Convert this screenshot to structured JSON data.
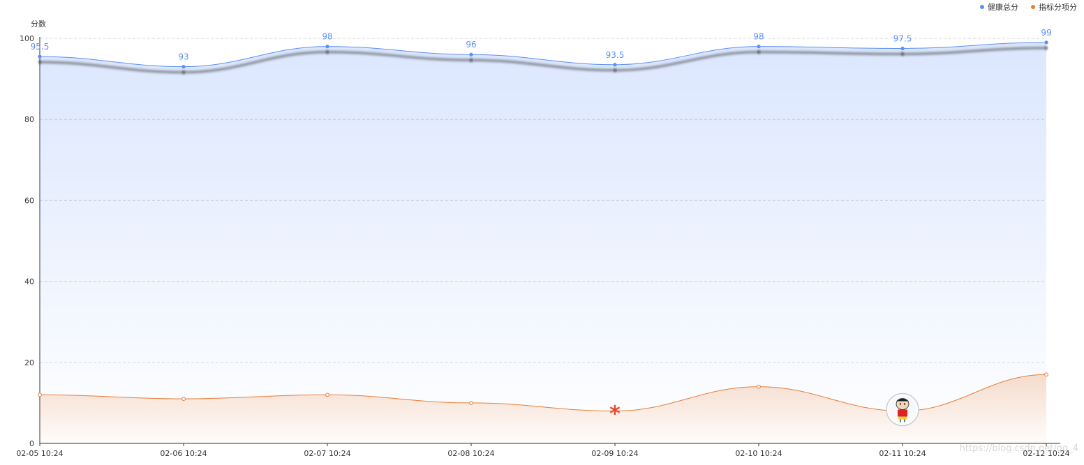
{
  "legend": {
    "items": [
      {
        "label": "健康总分",
        "color": "#5b8ff9"
      },
      {
        "label": "指标分项分",
        "color": "#ed7d31"
      }
    ]
  },
  "watermark": "https://blog.csdn.net/qq_4",
  "chart_data": {
    "type": "area",
    "smooth": true,
    "title": "",
    "xlabel": "",
    "ylabel": "分数",
    "ylim": [
      0,
      100
    ],
    "yticks": [
      0,
      20,
      40,
      60,
      80,
      100
    ],
    "grid": true,
    "legend_position": "top-right",
    "categories": [
      "02-05 10:24",
      "02-06 10:24",
      "02-07 10:24",
      "02-08 10:24",
      "02-09 10:24",
      "02-10 10:24",
      "02-11 10:24",
      "02-12 10:24"
    ],
    "series": [
      {
        "name": "健康总分",
        "color": "#5b8ff9",
        "show_labels": true,
        "data_labels": [
          "95.5",
          "93",
          "98",
          "96",
          "93.5",
          "98",
          "97.5",
          "99"
        ],
        "values": [
          95.5,
          93,
          98,
          96,
          93.5,
          98,
          97.5,
          99
        ]
      },
      {
        "name": "指标分项分",
        "color": "#ed7d31",
        "show_labels": false,
        "values": [
          12,
          11,
          12,
          10,
          8,
          14,
          8,
          17
        ],
        "special_markers": [
          {
            "index": 4,
            "icon": "asterisk-marker-icon"
          },
          {
            "index": 6,
            "icon": "cartoon-avatar-icon"
          }
        ]
      }
    ]
  }
}
